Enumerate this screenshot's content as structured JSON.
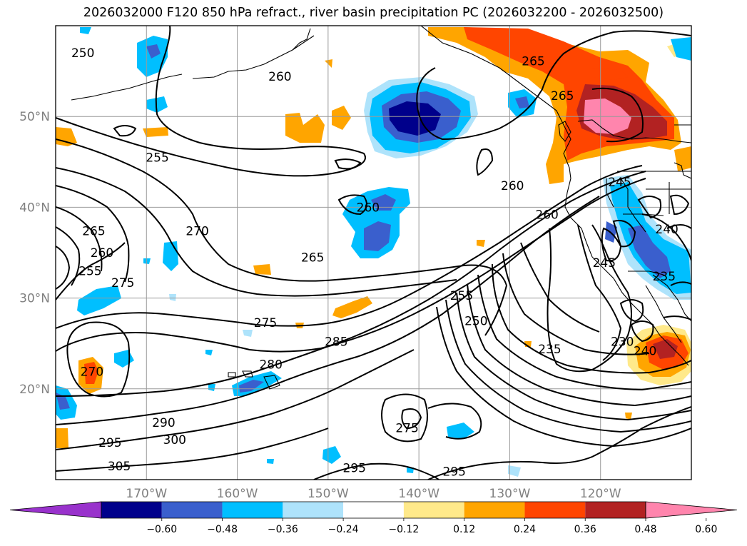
{
  "title": "2026032000 F120 850 hPa refract., river basin precipitation PC (2026032200 - 2026032500)",
  "map": {
    "lon_range": [
      -180,
      -110
    ],
    "lat_range": [
      10,
      60
    ],
    "lat_ticks": [
      {
        "value": 20,
        "label": "20°N"
      },
      {
        "value": 30,
        "label": "30°N"
      },
      {
        "value": 40,
        "label": "40°N"
      },
      {
        "value": 50,
        "label": "50°N"
      }
    ],
    "lon_ticks": [
      {
        "value": -170,
        "label": "170°W"
      },
      {
        "value": -160,
        "label": "160°W"
      },
      {
        "value": -150,
        "label": "150°W"
      },
      {
        "value": -140,
        "label": "140°W"
      },
      {
        "value": -130,
        "label": "130°W"
      },
      {
        "value": -120,
        "label": "120°W"
      }
    ],
    "contour_labels": [
      {
        "text": "250",
        "lon": -177,
        "lat": 57
      },
      {
        "text": "260",
        "lon": -155.3,
        "lat": 54.4
      },
      {
        "text": "255",
        "lon": -168.8,
        "lat": 45.5
      },
      {
        "text": "265",
        "lon": -127.4,
        "lat": 56.1
      },
      {
        "text": "265",
        "lon": -124.2,
        "lat": 52.3
      },
      {
        "text": "260",
        "lon": -129.7,
        "lat": 42.4
      },
      {
        "text": "260",
        "lon": -125.9,
        "lat": 39.2
      },
      {
        "text": "245",
        "lon": -117.9,
        "lat": 42.8
      },
      {
        "text": "240",
        "lon": -112.7,
        "lat": 37.6
      },
      {
        "text": "270",
        "lon": -164.4,
        "lat": 37.4
      },
      {
        "text": "265",
        "lon": -175.8,
        "lat": 37.4
      },
      {
        "text": "260",
        "lon": -174.9,
        "lat": 35
      },
      {
        "text": "255",
        "lon": -176.2,
        "lat": 33
      },
      {
        "text": "275",
        "lon": -172.6,
        "lat": 31.7
      },
      {
        "text": "260",
        "lon": -145.6,
        "lat": 40
      },
      {
        "text": "265",
        "lon": -151.7,
        "lat": 34.5
      },
      {
        "text": "275",
        "lon": -156.9,
        "lat": 27.3
      },
      {
        "text": "285",
        "lon": -149.1,
        "lat": 25.2
      },
      {
        "text": "280",
        "lon": -156.3,
        "lat": 22.7
      },
      {
        "text": "255",
        "lon": -135.3,
        "lat": 30.3
      },
      {
        "text": "250",
        "lon": -133.7,
        "lat": 27.5
      },
      {
        "text": "245",
        "lon": -119.6,
        "lat": 33.9
      },
      {
        "text": "235",
        "lon": -113,
        "lat": 32.4
      },
      {
        "text": "235",
        "lon": -125.6,
        "lat": 24.4
      },
      {
        "text": "230",
        "lon": -117.6,
        "lat": 25.2
      },
      {
        "text": "240",
        "lon": -115.1,
        "lat": 24.2
      },
      {
        "text": "270",
        "lon": -176,
        "lat": 21.9
      },
      {
        "text": "290",
        "lon": -168.1,
        "lat": 16.3
      },
      {
        "text": "295",
        "lon": -174,
        "lat": 14.1
      },
      {
        "text": "300",
        "lon": -166.9,
        "lat": 14.4
      },
      {
        "text": "305",
        "lon": -173,
        "lat": 11.5
      },
      {
        "text": "275",
        "lon": -141.3,
        "lat": 15.7
      },
      {
        "text": "295",
        "lon": -147.1,
        "lat": 11.3
      },
      {
        "text": "295",
        "lon": -136.1,
        "lat": 10.9
      }
    ]
  },
  "colorbar": {
    "colors": [
      "#9932cc",
      "#00008b",
      "#3a5fcd",
      "#00bfff",
      "#aee3fb",
      "#ffffff",
      "#ffe98a",
      "#ffa500",
      "#ff4500",
      "#b22222",
      "#ff85ad"
    ],
    "labels": [
      "−0.60",
      "−0.48",
      "−0.36",
      "−0.24",
      "−0.12",
      "0.12",
      "0.24",
      "0.36",
      "0.48",
      "0.60"
    ]
  }
}
